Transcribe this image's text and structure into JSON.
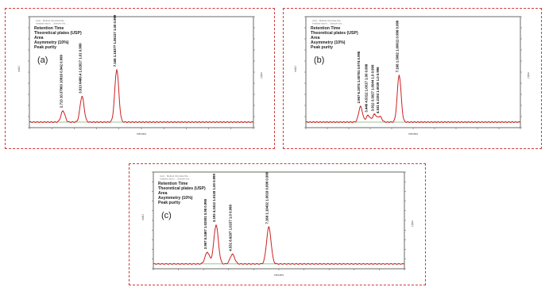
{
  "chart_data": [
    {
      "type": "line",
      "panel_label": "(a)",
      "legend_lines": [
        "Retention Time",
        "Theoretical plates (USP)",
        "Area",
        "Asymmetry (10%)",
        "Peak purity"
      ],
      "x_range": [
        0,
        10
      ],
      "peaks": [
        {
          "rt": 1.5,
          "height": 0.1,
          "label": "2.713 10.37963 10916 0.942 0.999"
        },
        {
          "rt": 2.35,
          "height": 0.23,
          "label": "3.913 6469.4 1.02817 1.01 0.999"
        },
        {
          "rt": 3.9,
          "height": 0.47,
          "label": "7.168 1.18377 1.06117 1.00 0.999"
        }
      ],
      "line_color": "#cc2222"
    },
    {
      "type": "line",
      "panel_label": "(b)",
      "legend_lines": [
        "Retention Time",
        "Theoretical plates (USP)",
        "Area",
        "Asymmetry (10%)",
        "Peak purity"
      ],
      "x_range": [
        0,
        10
      ],
      "peaks": [
        {
          "rt": 2.55,
          "height": 0.14,
          "label": "2.967 6.1974 1.00781 0.974 0.998"
        },
        {
          "rt": 2.9,
          "height": 0.06,
          "label": "3.446 4.5312 1.0017 1.00 0.998"
        },
        {
          "rt": 3.2,
          "height": 0.07,
          "label": "3.912 3.3027 1.0044 1.0 0.999"
        },
        {
          "rt": 3.45,
          "height": 0.05,
          "label": "4.531 6.2193 1.0039 1.0 0.998"
        },
        {
          "rt": 4.35,
          "height": 0.42,
          "label": "7.168 1.5082 1.00611 0.998 0.999"
        }
      ],
      "line_color": "#cc2222"
    },
    {
      "type": "line",
      "panel_label": "(c)",
      "legend_lines": [
        "Retention Time",
        "Theoretical plates (USP)",
        "Area",
        "Asymmetry (10%)",
        "Peak purity"
      ],
      "x_range": [
        0,
        10
      ],
      "peaks": [
        {
          "rt": 2.15,
          "height": 0.12,
          "label": "2.967 8.3467 1.02591 0.98 0.998"
        },
        {
          "rt": 2.5,
          "height": 0.4,
          "label": "3.193 4.3412 1.0128 1.00 0.999"
        },
        {
          "rt": 3.15,
          "height": 0.1,
          "label": "4.531 8.6297 1.0157 1.0 0.998"
        },
        {
          "rt": 4.6,
          "height": 0.38,
          "label": "7.168 1.10432 1.0018 0.999 0.999"
        }
      ],
      "line_color": "#cc2222"
    }
  ],
  "axis_label_y": "mAU",
  "axis_label_x": "minutes",
  "header_info": "Cetir... Method Info Data File ...",
  "header_info_2": "Analysis report ... Sample Info ..."
}
